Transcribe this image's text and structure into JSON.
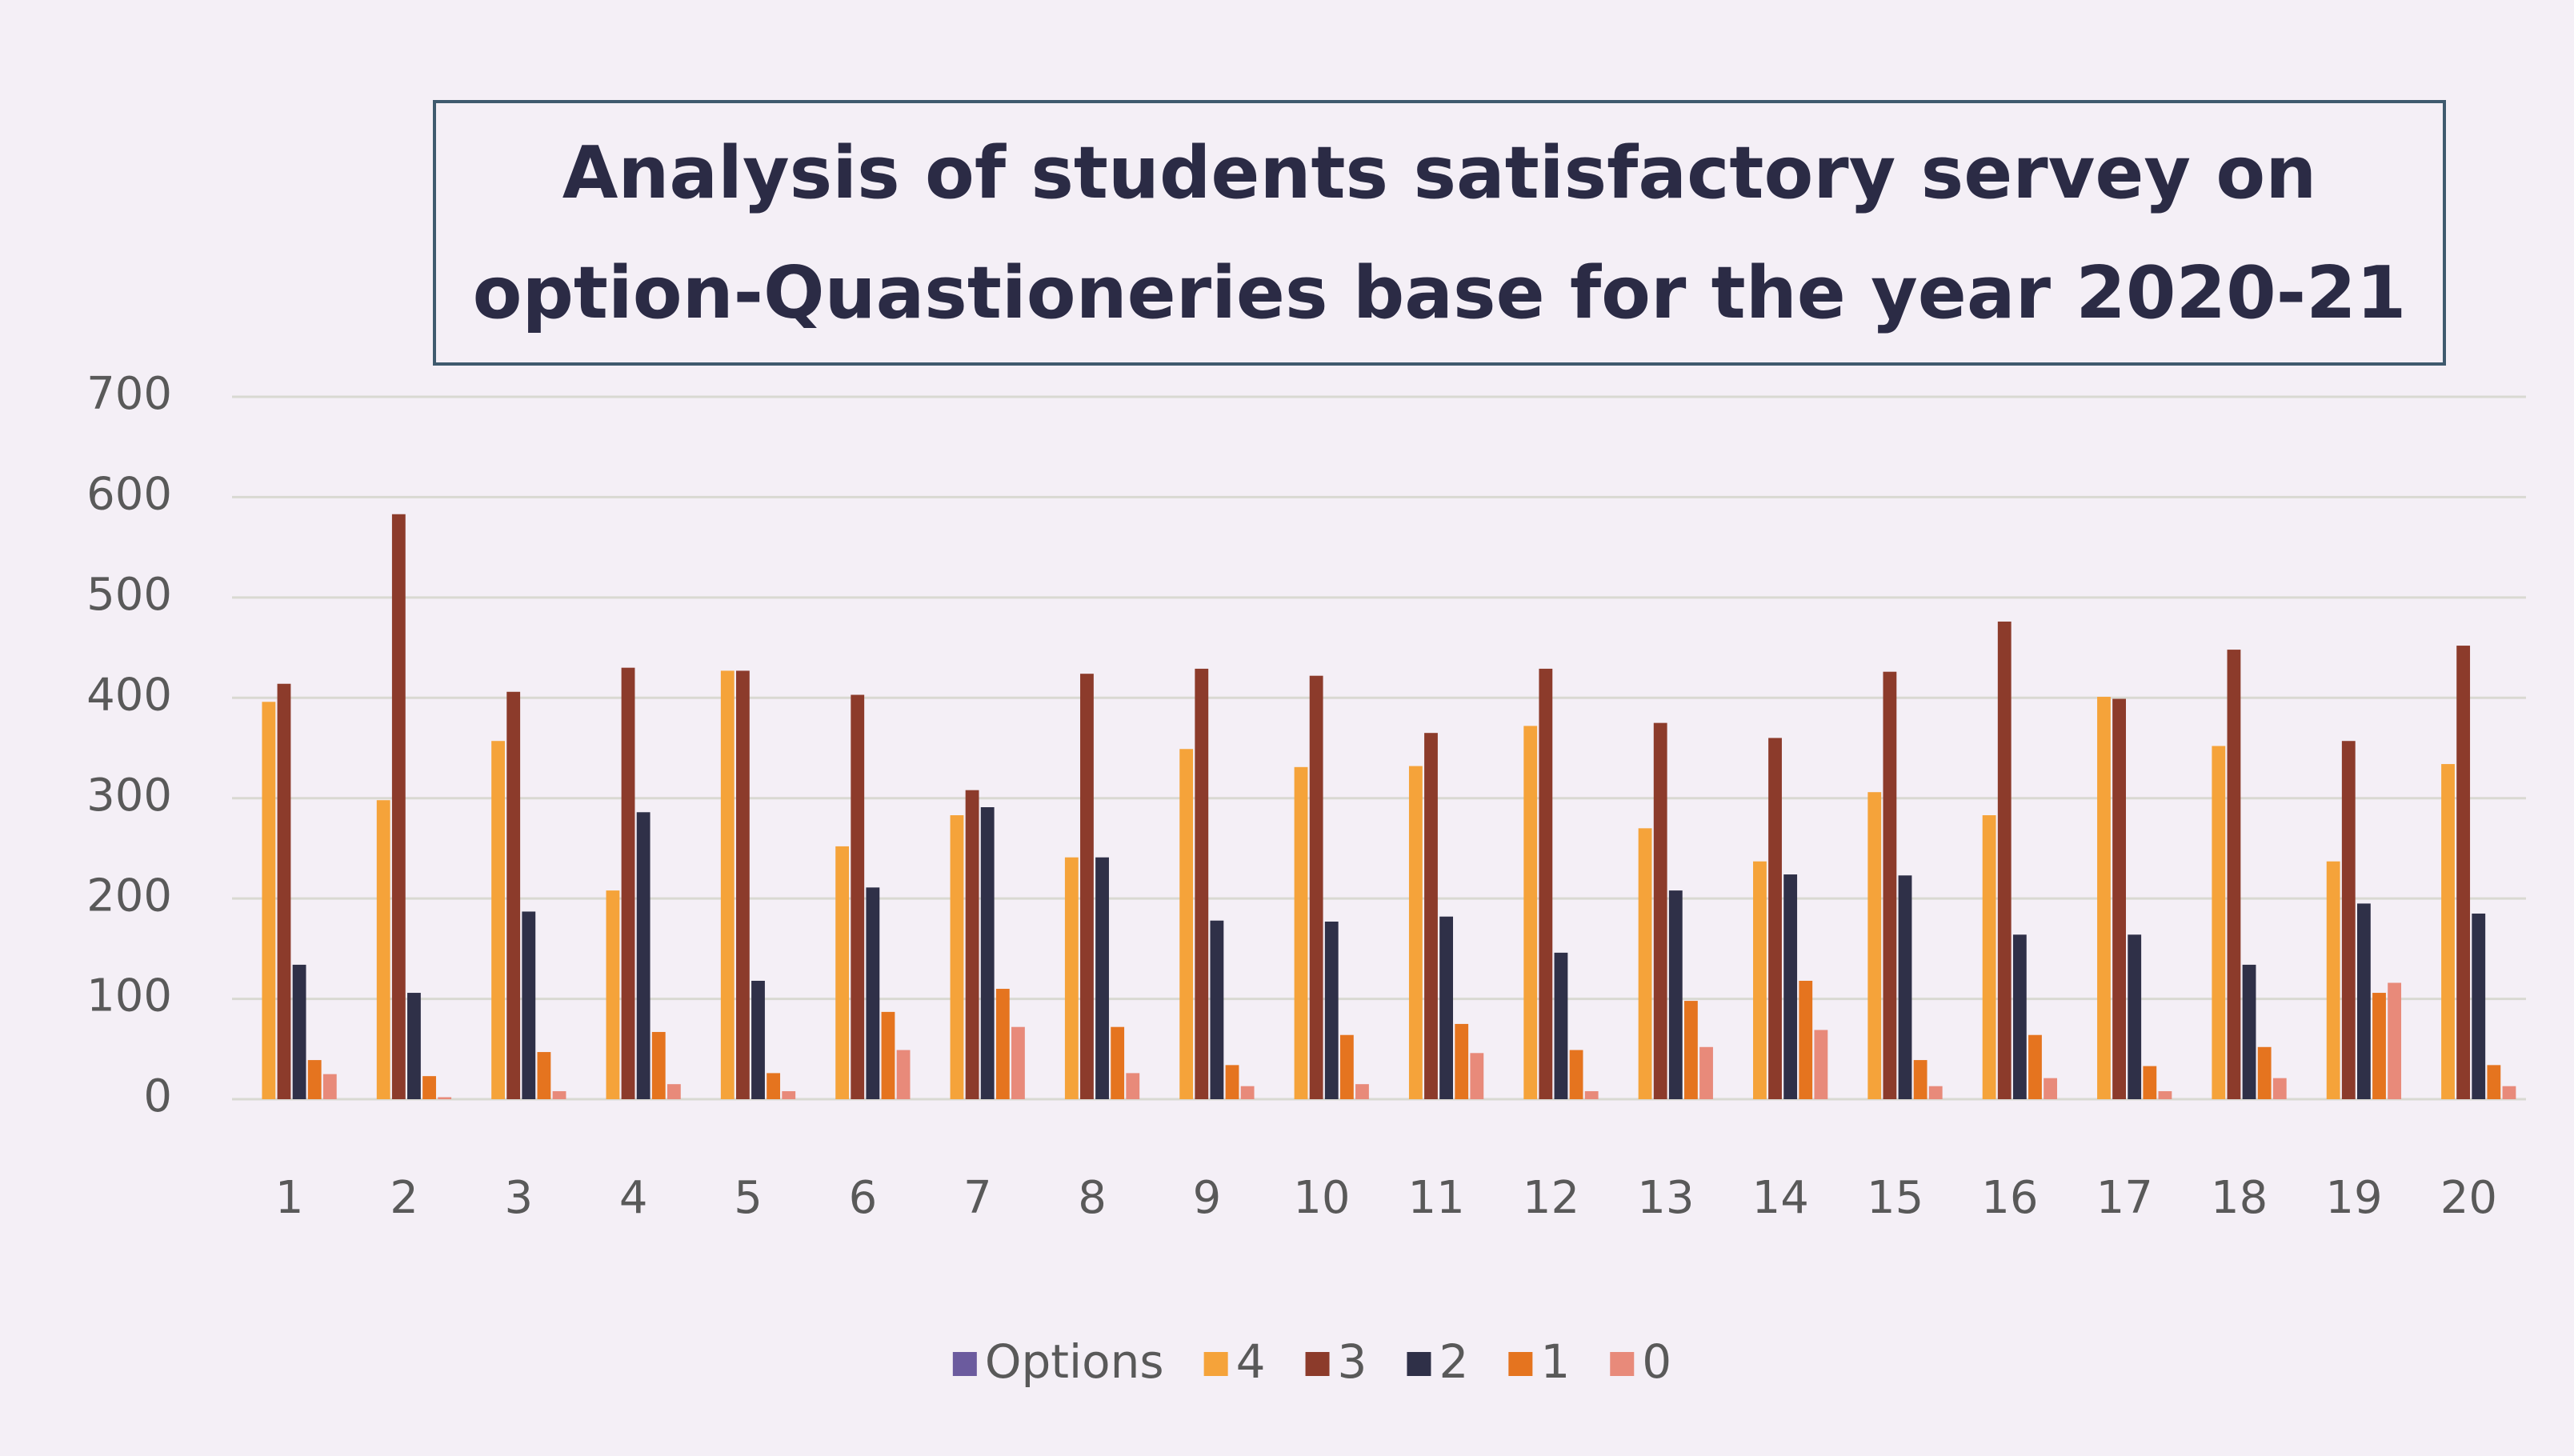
{
  "chart_data": {
    "type": "bar",
    "title": [
      "Analysis of students satisfactory servey on",
      "option-Quastioneries base for the  year 2020-21"
    ],
    "categories": [
      "1",
      "2",
      "3",
      "4",
      "5",
      "6",
      "7",
      "8",
      "9",
      "10",
      "11",
      "12",
      "13",
      "14",
      "15",
      "16",
      "17",
      "18",
      "19",
      "20"
    ],
    "series": [
      {
        "name": "Options",
        "color": "#6b5b9e",
        "values": [
          null,
          null,
          null,
          null,
          null,
          null,
          null,
          null,
          null,
          null,
          null,
          null,
          null,
          null,
          null,
          null,
          null,
          null,
          null,
          null
        ]
      },
      {
        "name": "4",
        "color": "#f5a33a",
        "values": [
          396,
          298,
          357,
          208,
          427,
          252,
          283,
          241,
          349,
          331,
          332,
          372,
          270,
          237,
          306,
          283,
          401,
          352,
          237,
          334
        ]
      },
      {
        "name": "3",
        "color": "#8c3b2b",
        "values": [
          414,
          583,
          406,
          430,
          427,
          403,
          308,
          424,
          429,
          422,
          365,
          429,
          375,
          360,
          426,
          476,
          399,
          448,
          357,
          452
        ]
      },
      {
        "name": "2",
        "color": "#2f3048",
        "values": [
          134,
          106,
          187,
          286,
          118,
          211,
          291,
          241,
          178,
          177,
          182,
          146,
          208,
          224,
          223,
          164,
          164,
          134,
          195,
          185
        ]
      },
      {
        "name": "1",
        "color": "#e5741f",
        "values": [
          39,
          23,
          47,
          67,
          26,
          87,
          110,
          72,
          34,
          64,
          75,
          49,
          98,
          118,
          39,
          64,
          33,
          52,
          106,
          34
        ]
      },
      {
        "name": "0",
        "color": "#e88a7a",
        "values": [
          25,
          2,
          8,
          15,
          8,
          49,
          72,
          26,
          13,
          15,
          46,
          8,
          52,
          69,
          13,
          21,
          8,
          21,
          116,
          13
        ]
      }
    ],
    "ylim": [
      0,
      700
    ],
    "yticks": [
      0,
      100,
      200,
      300,
      400,
      500,
      600,
      700
    ],
    "grid": true,
    "legend": "bottom"
  }
}
